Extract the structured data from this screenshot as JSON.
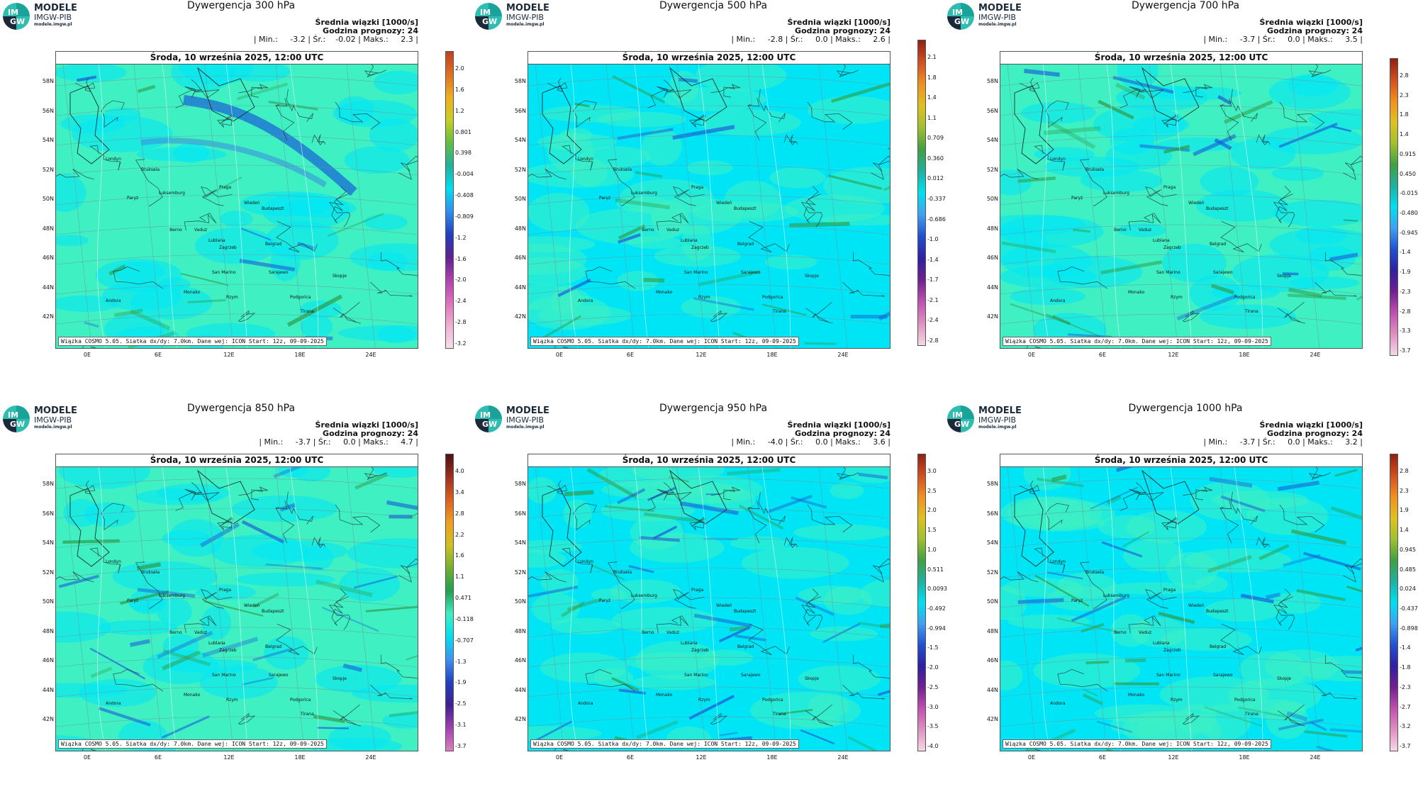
{
  "logo": {
    "circle_top": "IM",
    "circle_bottom": "GW",
    "line1": "MODELE",
    "line2": "IMGW-PIB",
    "line3": "modele.imgw.pl"
  },
  "common": {
    "date": "Środa, 10 września 2025, 12:00 UTC",
    "mean_label": "Średnia wiązki [1000/s]",
    "forecast_hour": "Godzina prognozy: 24",
    "footer": "Wiązka COSMO 5.05. Siatka dx/dy: 7.0km. Dane wej: ICON Start: 12z, 09-09-2025",
    "lat_labels": [
      "58N",
      "56N",
      "54N",
      "52N",
      "50N",
      "48N",
      "46N",
      "44N",
      "42N"
    ],
    "lon_labels": [
      "0E",
      "6E",
      "12E",
      "18E",
      "24E"
    ],
    "cities": [
      "Londyn",
      "Bruksela",
      "Paryż",
      "Luksemburg",
      "Praga",
      "Wiedeń",
      "Budapeszt",
      "Berno",
      "Vaduz",
      "Lublana",
      "Zagrzeb",
      "Belgrad",
      "San Marino",
      "Sarajewo",
      "Monako",
      "Andora",
      "Podgorica",
      "Skopje",
      "Rzym",
      "Tirana"
    ]
  },
  "colors": {
    "field": "#00e5f5",
    "field_alt": "#3ff0c3",
    "positive": "#2e9e4a",
    "negative": "#1a5fd6"
  },
  "panels": [
    {
      "title": "Dywergencja 300 hPa",
      "stats": "| Min.:     -3.2 | Śr.:    -0.02 | Maks.:     2.3 |",
      "cbar": [
        "2.0",
        "1.6",
        "1.2",
        "0.801",
        "0.398",
        "-0.004",
        "-0.408",
        "-0.809",
        "-1.2",
        "-1.6",
        "-2.0",
        "-2.4",
        "-2.8",
        "-3.2"
      ]
    },
    {
      "title": "Dywergencja 500 hPa",
      "stats": "| Min.:     -2.8 | Śr.:     0.0 | Maks.:     2.6 |",
      "cbar": [
        "2.1",
        "1.8",
        "1.4",
        "1.1",
        "0.709",
        "0.360",
        "0.012",
        "-0.337",
        "-0.686",
        "-1.0",
        "-1.4",
        "-1.7",
        "-2.1",
        "-2.4",
        "-2.8"
      ]
    },
    {
      "title": "Dywergencja 700 hPa",
      "stats": "| Min.:     -3.7 | Śr.:     0.0 | Maks.:     3.5 |",
      "cbar": [
        "2.8",
        "2.3",
        "1.8",
        "1.4",
        "0.915",
        "0.450",
        "-0.015",
        "-0.480",
        "-0.945",
        "-1.4",
        "-1.9",
        "-2.3",
        "-2.8",
        "-3.3",
        "-3.7"
      ]
    },
    {
      "title": "Dywergencja 850 hPa",
      "stats": "| Min.:     -3.7 | Śr.:     0.0 | Maks.:     4.7 |",
      "cbar": [
        "4.0",
        "3.4",
        "2.8",
        "2.2",
        "1.6",
        "1.1",
        "0.471",
        "-0.118",
        "-0.707",
        "-1.3",
        "-1.9",
        "-2.5",
        "-3.1",
        "-3.7"
      ]
    },
    {
      "title": "Dywergencja 950 hPa",
      "stats": "| Min.:     -4.0 | Śr.:     0.0 | Maks.:     3.6 |",
      "cbar": [
        "3.0",
        "2.5",
        "2.0",
        "1.5",
        "1.0",
        "0.511",
        "0.0093",
        "-0.492",
        "-0.994",
        "-1.5",
        "-2.0",
        "-2.5",
        "-3.0",
        "-3.5",
        "-4.0"
      ]
    },
    {
      "title": "Dywergencja 1000 hPa",
      "stats": "| Min.:     -3.7 | Śr.:     0.0 | Maks.:     3.2 |",
      "cbar": [
        "2.8",
        "2.3",
        "1.9",
        "1.4",
        "0.945",
        "0.485",
        "0.024",
        "-0.437",
        "-0.898",
        "-1.4",
        "-1.8",
        "-2.3",
        "-2.7",
        "-3.2",
        "-3.7"
      ]
    }
  ]
}
